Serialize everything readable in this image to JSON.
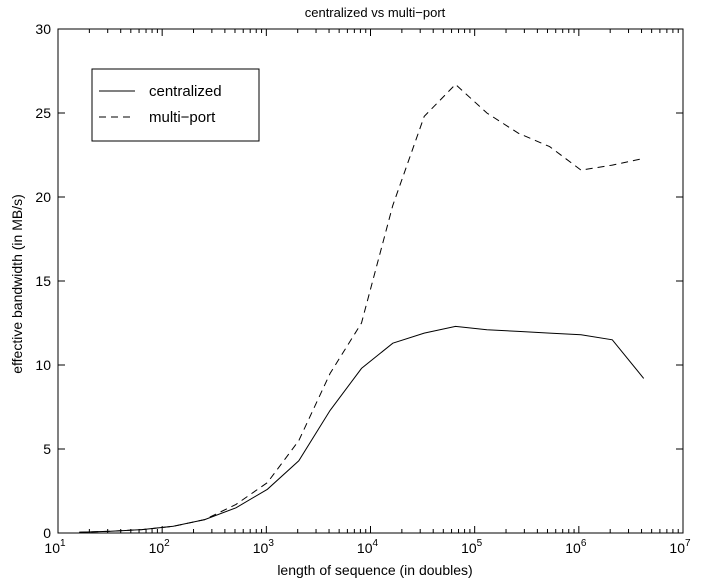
{
  "chart_data": {
    "type": "line",
    "title": "centralized vs multi−port",
    "xlabel": "length of sequence (in doubles)",
    "ylabel": "effective bandwidth (in MB/s)",
    "x_scale": "log",
    "xlim": [
      10,
      10000000
    ],
    "ylim": [
      0,
      30
    ],
    "x_ticks": [
      {
        "base": "10",
        "exp": "1"
      },
      {
        "base": "10",
        "exp": "2"
      },
      {
        "base": "10",
        "exp": "3"
      },
      {
        "base": "10",
        "exp": "4"
      },
      {
        "base": "10",
        "exp": "5"
      },
      {
        "base": "10",
        "exp": "6"
      },
      {
        "base": "10",
        "exp": "7"
      }
    ],
    "y_ticks": [
      "0",
      "5",
      "10",
      "15",
      "20",
      "25",
      "30"
    ],
    "grid": false,
    "legend_position": "top-left",
    "x": [
      16,
      32,
      64,
      128,
      256,
      512,
      1024,
      2048,
      4096,
      8192,
      16384,
      32768,
      65536,
      131072,
      262144,
      524288,
      1048576,
      2097152,
      4194304
    ],
    "series": [
      {
        "name": "centralized",
        "style": "solid",
        "color": "#000000",
        "values": [
          0.05,
          0.1,
          0.2,
          0.4,
          0.8,
          1.5,
          2.6,
          4.3,
          7.3,
          9.8,
          11.3,
          11.9,
          12.3,
          12.1,
          12.0,
          11.9,
          11.8,
          11.5,
          9.2
        ]
      },
      {
        "name": "multi−port",
        "style": "dashed",
        "color": "#000000",
        "values": [
          0.05,
          0.1,
          0.2,
          0.4,
          0.8,
          1.7,
          3.0,
          5.5,
          9.5,
          12.5,
          19.5,
          24.8,
          26.7,
          25.0,
          23.8,
          23.0,
          21.6,
          21.9,
          22.3
        ]
      }
    ]
  }
}
